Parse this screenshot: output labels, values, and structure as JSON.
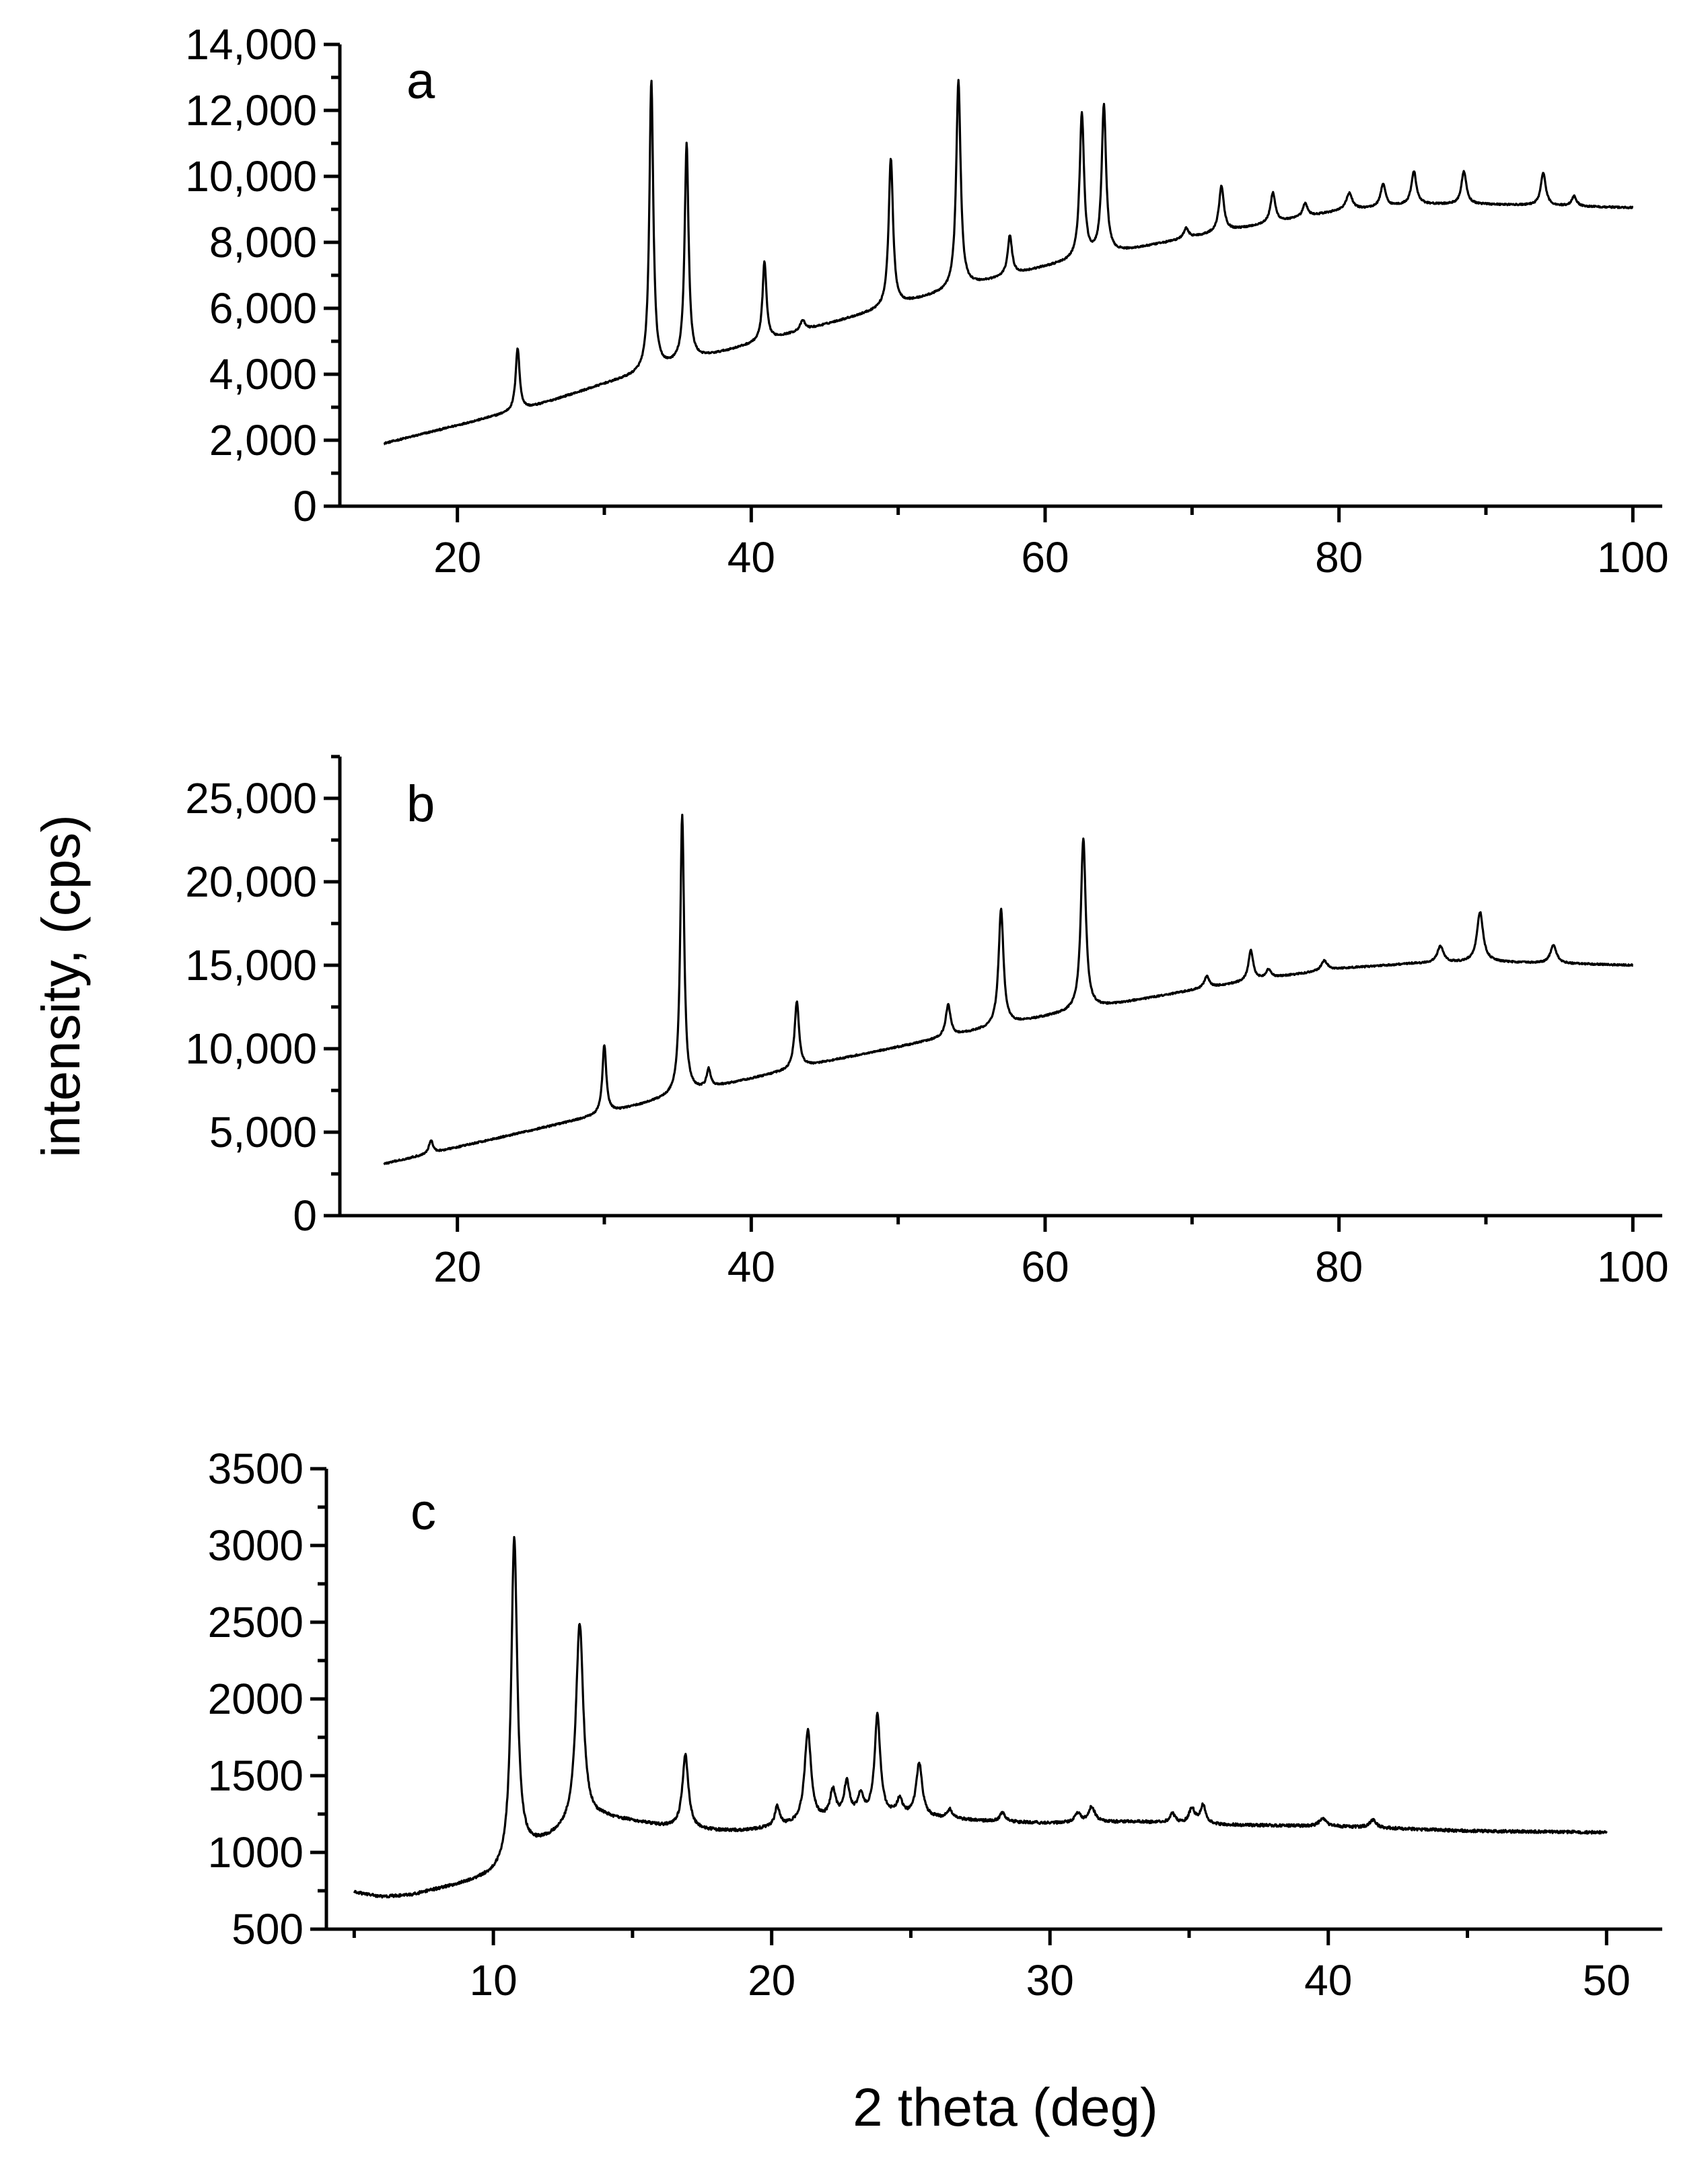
{
  "figure": {
    "ylabel": "intensity, (cps)",
    "xlabel": "2 theta (deg)"
  },
  "chart_data": [
    {
      "type": "line",
      "panel_label": "a",
      "xlim": [
        12,
        102
      ],
      "ylim": [
        0,
        14000
      ],
      "x_ticks": [
        20,
        40,
        60,
        80,
        100
      ],
      "x_tick_labels": [
        "20",
        "40",
        "60",
        "80",
        "100"
      ],
      "y_ticks": [
        0,
        2000,
        4000,
        6000,
        8000,
        10000,
        12000,
        14000
      ],
      "y_tick_labels": [
        "0",
        "2,000",
        "4,000",
        "6,000",
        "8,000",
        "10,000",
        "12,000",
        "14,000"
      ],
      "grid": false,
      "x_range": [
        15,
        100
      ],
      "baseline": [
        [
          15,
          1900
        ],
        [
          20,
          2450
        ],
        [
          25,
          3000
        ],
        [
          30,
          3700
        ],
        [
          35,
          4300
        ],
        [
          40,
          4900
        ],
        [
          45,
          5500
        ],
        [
          50,
          6100
        ],
        [
          55,
          6700
        ],
        [
          60,
          7250
        ],
        [
          65,
          7700
        ],
        [
          70,
          8150
        ],
        [
          75,
          8550
        ],
        [
          80,
          8950
        ],
        [
          85,
          9150
        ],
        [
          90,
          9150
        ],
        [
          95,
          9100
        ],
        [
          100,
          9050
        ]
      ],
      "peaks": [
        [
          24.1,
          1900,
          0.16
        ],
        [
          33.2,
          8800,
          0.16
        ],
        [
          35.6,
          6600,
          0.16
        ],
        [
          40.9,
          2400,
          0.16
        ],
        [
          43.5,
          300,
          0.2
        ],
        [
          49.5,
          4500,
          0.18
        ],
        [
          54.1,
          6300,
          0.18
        ],
        [
          57.6,
          1200,
          0.18
        ],
        [
          62.5,
          4400,
          0.18
        ],
        [
          64.0,
          4500,
          0.18
        ],
        [
          69.6,
          300,
          0.2
        ],
        [
          72.0,
          1400,
          0.2
        ],
        [
          75.5,
          900,
          0.2
        ],
        [
          77.7,
          400,
          0.2
        ],
        [
          80.7,
          500,
          0.25
        ],
        [
          83.0,
          700,
          0.2
        ],
        [
          85.1,
          1000,
          0.2
        ],
        [
          88.5,
          1000,
          0.2
        ],
        [
          93.9,
          1000,
          0.2
        ],
        [
          96.0,
          300,
          0.2
        ]
      ]
    },
    {
      "type": "line",
      "panel_label": "b",
      "xlim": [
        12,
        102
      ],
      "ylim": [
        0,
        27500
      ],
      "x_ticks": [
        20,
        40,
        60,
        80,
        100
      ],
      "x_tick_labels": [
        "20",
        "40",
        "60",
        "80",
        "100"
      ],
      "y_ticks": [
        0,
        5000,
        10000,
        15000,
        20000,
        25000
      ],
      "y_tick_labels": [
        "0",
        "5,000",
        "10,000",
        "15,000",
        "20,000",
        "25,000"
      ],
      "grid": false,
      "x_range": [
        15,
        100
      ],
      "baseline": [
        [
          15,
          3100
        ],
        [
          20,
          4100
        ],
        [
          25,
          5100
        ],
        [
          30,
          6100
        ],
        [
          35,
          7200
        ],
        [
          40,
          8200
        ],
        [
          45,
          9200
        ],
        [
          50,
          10100
        ],
        [
          55,
          11000
        ],
        [
          60,
          11900
        ],
        [
          65,
          12700
        ],
        [
          70,
          13500
        ],
        [
          75,
          14200
        ],
        [
          80,
          14800
        ],
        [
          85,
          15100
        ],
        [
          90,
          15200
        ],
        [
          95,
          15100
        ],
        [
          100,
          15000
        ]
      ],
      "peaks": [
        [
          18.2,
          800,
          0.16
        ],
        [
          30.0,
          4100,
          0.16
        ],
        [
          35.3,
          16700,
          0.16
        ],
        [
          37.1,
          1100,
          0.16
        ],
        [
          43.1,
          4000,
          0.18
        ],
        [
          53.4,
          1900,
          0.2
        ],
        [
          57.0,
          7000,
          0.2
        ],
        [
          62.6,
          10300,
          0.2
        ],
        [
          71.0,
          700,
          0.2
        ],
        [
          74.0,
          1800,
          0.2
        ],
        [
          75.2,
          500,
          0.2
        ],
        [
          79.0,
          600,
          0.25
        ],
        [
          86.9,
          1000,
          0.25
        ],
        [
          89.6,
          3000,
          0.25
        ],
        [
          94.6,
          1100,
          0.25
        ]
      ]
    },
    {
      "type": "line",
      "panel_label": "c",
      "xlim": [
        4,
        52
      ],
      "ylim": [
        500,
        3500
      ],
      "x_ticks": [
        10,
        20,
        30,
        40,
        50
      ],
      "x_tick_labels": [
        "10",
        "20",
        "30",
        "40",
        "50"
      ],
      "y_ticks": [
        500,
        1000,
        1500,
        2000,
        2500,
        3000,
        3500
      ],
      "y_tick_labels": [
        "500",
        "1000",
        "1500",
        "2000",
        "2500",
        "3000",
        "3500"
      ],
      "grid": false,
      "x_range": [
        5,
        50
      ],
      "baseline": [
        [
          5,
          740
        ],
        [
          6,
          710
        ],
        [
          7,
          720
        ],
        [
          8,
          760
        ],
        [
          9,
          800
        ],
        [
          10,
          850
        ],
        [
          10.5,
          900
        ],
        [
          11,
          1000
        ],
        [
          12,
          1080
        ],
        [
          13,
          1180
        ],
        [
          14,
          1220
        ],
        [
          15,
          1200
        ],
        [
          16,
          1170
        ],
        [
          17,
          1150
        ],
        [
          18,
          1140
        ],
        [
          19,
          1140
        ],
        [
          20,
          1160
        ],
        [
          21,
          1180
        ],
        [
          22,
          1210
        ],
        [
          23,
          1230
        ],
        [
          24,
          1240
        ],
        [
          25,
          1230
        ],
        [
          26,
          1220
        ],
        [
          27,
          1210
        ],
        [
          28,
          1200
        ],
        [
          30,
          1190
        ],
        [
          33,
          1200
        ],
        [
          36,
          1180
        ],
        [
          40,
          1170
        ],
        [
          45,
          1140
        ],
        [
          50,
          1130
        ]
      ],
      "peaks": [
        [
          10.75,
          2100,
          0.13
        ],
        [
          13.1,
          1300,
          0.16
        ],
        [
          16.9,
          480,
          0.13
        ],
        [
          20.2,
          130,
          0.1
        ],
        [
          21.3,
          600,
          0.14
        ],
        [
          22.2,
          180,
          0.12
        ],
        [
          22.7,
          220,
          0.12
        ],
        [
          23.2,
          130,
          0.12
        ],
        [
          23.8,
          650,
          0.12
        ],
        [
          24.6,
          100,
          0.12
        ],
        [
          25.3,
          350,
          0.13
        ],
        [
          26.4,
          60,
          0.12
        ],
        [
          28.3,
          60,
          0.12
        ],
        [
          31.0,
          60,
          0.12
        ],
        [
          31.5,
          100,
          0.14
        ],
        [
          34.4,
          60,
          0.12
        ],
        [
          35.1,
          100,
          0.12
        ],
        [
          35.5,
          120,
          0.12
        ],
        [
          39.8,
          50,
          0.15
        ],
        [
          41.6,
          50,
          0.15
        ]
      ]
    }
  ]
}
